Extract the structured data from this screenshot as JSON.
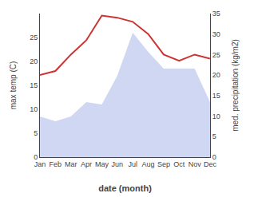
{
  "chart_data": {
    "type": "line",
    "xlabel": "date (month)",
    "ylabel": "max temp (C)",
    "y2label": "med. precipitation (kg/m2)",
    "categories": [
      "Jan",
      "Feb",
      "Mar",
      "Apr",
      "May",
      "Jun",
      "Jul",
      "Aug",
      "Sep",
      "Oct",
      "Nov",
      "Dec"
    ],
    "series": [
      {
        "type": "area",
        "color": "#c8d0f0",
        "values": [
          8.5,
          7.5,
          8.5,
          11.5,
          11.0,
          17.0,
          26.0,
          22.0,
          18.5,
          18.5,
          18.5,
          11.5
        ]
      },
      {
        "type": "line",
        "color": "#cc3333",
        "axis": "y2",
        "values": [
          20.0,
          21.0,
          25.0,
          28.5,
          34.5,
          34.0,
          33.0,
          30.0,
          25.0,
          23.5,
          25.0,
          24.0
        ]
      }
    ],
    "ylim": [
      0,
      30
    ],
    "yticks": [
      0,
      5,
      10,
      15,
      20,
      25
    ],
    "y2lim": [
      0,
      35
    ],
    "y2ticks": [
      0,
      5,
      10,
      15,
      20,
      25,
      30,
      35
    ],
    "grid": false
  }
}
